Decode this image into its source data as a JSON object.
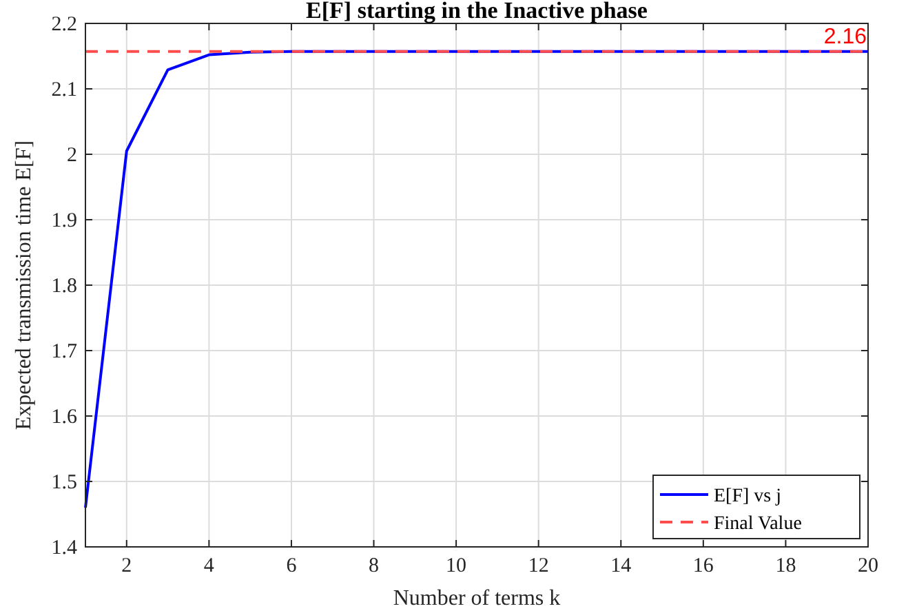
{
  "chart_data": {
    "type": "line",
    "title": "E[F] starting in the Inactive phase",
    "xlabel": "Number of terms k",
    "ylabel": "Expected transmission time E[F]",
    "x": [
      1,
      2,
      3,
      4,
      5,
      6,
      7,
      8,
      9,
      10,
      11,
      12,
      13,
      14,
      15,
      16,
      17,
      18,
      19,
      20
    ],
    "series": [
      {
        "name": "E[F] vs j",
        "color": "#0000ff",
        "line_style": "solid",
        "values": [
          1.46,
          2.005,
          2.129,
          2.152,
          2.156,
          2.157,
          2.157,
          2.157,
          2.157,
          2.157,
          2.157,
          2.157,
          2.157,
          2.157,
          2.157,
          2.157,
          2.157,
          2.157,
          2.157,
          2.157
        ]
      },
      {
        "name": "Final Value",
        "color": "#ff4d4d",
        "line_style": "dashed",
        "values": [
          2.157,
          2.157,
          2.157,
          2.157,
          2.157,
          2.157,
          2.157,
          2.157,
          2.157,
          2.157,
          2.157,
          2.157,
          2.157,
          2.157,
          2.157,
          2.157,
          2.157,
          2.157,
          2.157,
          2.157
        ]
      }
    ],
    "annotations": [
      {
        "text": "2.16",
        "x": 20,
        "y": 2.157
      }
    ],
    "xlim": [
      1,
      20
    ],
    "xticks": [
      2,
      4,
      6,
      8,
      10,
      12,
      14,
      16,
      18,
      20
    ],
    "ylim": [
      1.4,
      2.2
    ],
    "yticks": [
      1.4,
      1.5,
      1.6,
      1.7,
      1.8,
      1.9,
      2,
      2.1,
      2.2
    ],
    "grid": true,
    "legend": "bottom right",
    "marker": "none"
  }
}
